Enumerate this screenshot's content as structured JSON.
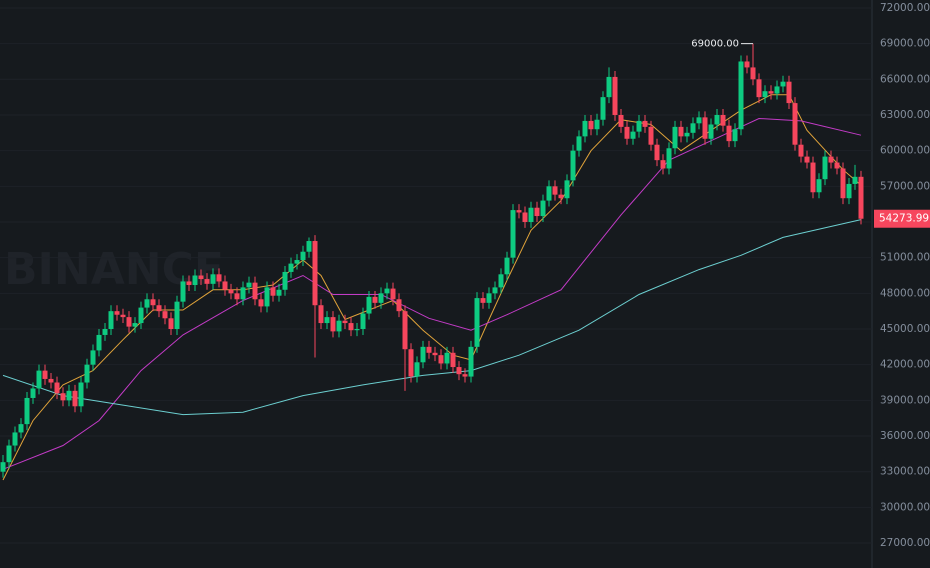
{
  "chart_data": {
    "type": "candlestick",
    "watermark": "BINANCE",
    "annotation": "69000.00",
    "up_color": "#0ecb81",
    "down_color": "#f6465d",
    "ohlc": [
      [
        33000,
        34400,
        32500,
        33800
      ],
      [
        33800,
        35700,
        33300,
        35200
      ],
      [
        35200,
        36800,
        34700,
        36300
      ],
      [
        36300,
        37500,
        35800,
        37000
      ],
      [
        37000,
        39700,
        36500,
        39200
      ],
      [
        39200,
        40500,
        38700,
        40000
      ],
      [
        40000,
        42000,
        39500,
        41500
      ],
      [
        41500,
        42000,
        40300,
        40800
      ],
      [
        40800,
        41300,
        40000,
        40500
      ],
      [
        40500,
        41000,
        39100,
        39600
      ],
      [
        39600,
        40100,
        38500,
        39000
      ],
      [
        39000,
        40300,
        38500,
        39800
      ],
      [
        39800,
        40300,
        38000,
        38500
      ],
      [
        38500,
        41000,
        38000,
        40500
      ],
      [
        40500,
        42500,
        40000,
        42000
      ],
      [
        42000,
        43700,
        41500,
        43200
      ],
      [
        43200,
        45000,
        42700,
        44500
      ],
      [
        44500,
        45500,
        44000,
        45000
      ],
      [
        45000,
        47000,
        44500,
        46500
      ],
      [
        46500,
        47000,
        45700,
        46200
      ],
      [
        46200,
        46700,
        45500,
        46000
      ],
      [
        46000,
        46500,
        44700,
        45200
      ],
      [
        45200,
        46000,
        44700,
        45500
      ],
      [
        45500,
        47300,
        45000,
        46800
      ],
      [
        46800,
        48000,
        46300,
        47500
      ],
      [
        47500,
        48000,
        46500,
        47000
      ],
      [
        47000,
        47500,
        46000,
        46500
      ],
      [
        46500,
        47000,
        45400,
        45900
      ],
      [
        45900,
        46400,
        44500,
        45000
      ],
      [
        45000,
        47800,
        44500,
        47300
      ],
      [
        47300,
        49500,
        46800,
        49000
      ],
      [
        49000,
        49500,
        48200,
        48700
      ],
      [
        48700,
        50000,
        48200,
        49500
      ],
      [
        49500,
        50000,
        48700,
        49200
      ],
      [
        49200,
        49700,
        48300,
        48800
      ],
      [
        48800,
        50100,
        48300,
        49600
      ],
      [
        49600,
        50100,
        48500,
        49000
      ],
      [
        49000,
        49500,
        47800,
        48300
      ],
      [
        48300,
        48800,
        47500,
        48000
      ],
      [
        48000,
        48500,
        47000,
        47500
      ],
      [
        47500,
        49000,
        47000,
        48500
      ],
      [
        48500,
        49400,
        48000,
        48900
      ],
      [
        48900,
        49400,
        47000,
        47500
      ],
      [
        47500,
        48000,
        46400,
        46900
      ],
      [
        46900,
        49000,
        46400,
        48500
      ],
      [
        48500,
        49000,
        47300,
        47800
      ],
      [
        47800,
        48800,
        47300,
        48300
      ],
      [
        48300,
        50300,
        47800,
        49800
      ],
      [
        49800,
        51000,
        49300,
        50500
      ],
      [
        50500,
        51300,
        50000,
        50800
      ],
      [
        50800,
        52000,
        50300,
        51500
      ],
      [
        51500,
        52700,
        51000,
        52400
      ],
      [
        52400,
        52900,
        42600,
        47000
      ],
      [
        47000,
        47500,
        45000,
        45500
      ],
      [
        45500,
        46500,
        45000,
        46000
      ],
      [
        46000,
        46500,
        44300,
        44800
      ],
      [
        44800,
        46200,
        44300,
        45700
      ],
      [
        45700,
        46200,
        45000,
        45500
      ],
      [
        45500,
        46000,
        44400,
        44900
      ],
      [
        44900,
        45500,
        44400,
        45000
      ],
      [
        45000,
        46800,
        44500,
        46300
      ],
      [
        46300,
        48200,
        45800,
        47700
      ],
      [
        47700,
        48200,
        46700,
        47200
      ],
      [
        47200,
        48500,
        46700,
        48000
      ],
      [
        48000,
        48900,
        47500,
        48400
      ],
      [
        48400,
        48900,
        47000,
        47500
      ],
      [
        47500,
        48000,
        46000,
        46500
      ],
      [
        46500,
        47000,
        39800,
        43300
      ],
      [
        43300,
        43800,
        40500,
        41000
      ],
      [
        41000,
        42700,
        40500,
        42200
      ],
      [
        42200,
        44000,
        41700,
        43500
      ],
      [
        43500,
        44000,
        42500,
        43000
      ],
      [
        43000,
        43500,
        42300,
        42800
      ],
      [
        42800,
        43300,
        41600,
        42100
      ],
      [
        42100,
        43500,
        41600,
        43000
      ],
      [
        43000,
        43500,
        41300,
        41800
      ],
      [
        41800,
        42300,
        40700,
        41200
      ],
      [
        41200,
        41700,
        40500,
        41000
      ],
      [
        41000,
        44000,
        40500,
        43500
      ],
      [
        43500,
        48100,
        43000,
        47600
      ],
      [
        47600,
        48100,
        46700,
        47200
      ],
      [
        47200,
        48500,
        46700,
        48000
      ],
      [
        48000,
        49000,
        47500,
        48500
      ],
      [
        48500,
        50100,
        48000,
        49600
      ],
      [
        49600,
        51500,
        49100,
        51000
      ],
      [
        51000,
        55500,
        50500,
        55000
      ],
      [
        55000,
        55500,
        54300,
        54800
      ],
      [
        54800,
        55300,
        53500,
        54000
      ],
      [
        54000,
        55700,
        53500,
        55200
      ],
      [
        55200,
        55700,
        54000,
        54500
      ],
      [
        54500,
        56300,
        54000,
        55800
      ],
      [
        55800,
        57500,
        55300,
        57000
      ],
      [
        57000,
        57500,
        55800,
        56300
      ],
      [
        56300,
        56800,
        55500,
        56000
      ],
      [
        56000,
        58000,
        55500,
        57500
      ],
      [
        57500,
        60500,
        57000,
        60000
      ],
      [
        60000,
        61700,
        59500,
        61200
      ],
      [
        61200,
        63000,
        60700,
        62500
      ],
      [
        62500,
        63000,
        61300,
        61800
      ],
      [
        61800,
        63100,
        61300,
        62600
      ],
      [
        62600,
        65000,
        62100,
        64500
      ],
      [
        64500,
        67000,
        64000,
        66200
      ],
      [
        66200,
        66700,
        62500,
        63000
      ],
      [
        63000,
        63500,
        61500,
        62000
      ],
      [
        62000,
        62500,
        60500,
        61000
      ],
      [
        61000,
        62100,
        60500,
        61600
      ],
      [
        61600,
        63000,
        61100,
        62500
      ],
      [
        62500,
        63000,
        61500,
        62000
      ],
      [
        62000,
        62500,
        60000,
        60500
      ],
      [
        60500,
        61000,
        58700,
        59200
      ],
      [
        59200,
        59700,
        58000,
        58500
      ],
      [
        58500,
        60700,
        58000,
        60200
      ],
      [
        60200,
        62500,
        59700,
        62000
      ],
      [
        62000,
        62500,
        60700,
        61200
      ],
      [
        61200,
        62000,
        60700,
        61500
      ],
      [
        61500,
        62800,
        61000,
        62300
      ],
      [
        62300,
        63300,
        61800,
        62800
      ],
      [
        62800,
        63300,
        60500,
        61000
      ],
      [
        61000,
        62700,
        60500,
        62200
      ],
      [
        62200,
        63500,
        61700,
        63000
      ],
      [
        63000,
        63500,
        61600,
        62100
      ],
      [
        62100,
        62600,
        60300,
        60800
      ],
      [
        60800,
        62300,
        60300,
        61800
      ],
      [
        61800,
        68000,
        61300,
        67500
      ],
      [
        67500,
        68000,
        66500,
        67000
      ],
      [
        67000,
        69000,
        65500,
        66000
      ],
      [
        66000,
        66500,
        64000,
        64500
      ],
      [
        64500,
        65500,
        64000,
        65000
      ],
      [
        65000,
        65500,
        64300,
        64800
      ],
      [
        64800,
        65900,
        64300,
        65400
      ],
      [
        65400,
        66300,
        64900,
        65800
      ],
      [
        65800,
        66300,
        63500,
        64000
      ],
      [
        64000,
        64500,
        60000,
        60500
      ],
      [
        60500,
        61000,
        59000,
        59500
      ],
      [
        59500,
        60000,
        58500,
        59000
      ],
      [
        59000,
        59500,
        56000,
        56500
      ],
      [
        56500,
        58100,
        56000,
        57600
      ],
      [
        57600,
        60000,
        57100,
        59500
      ],
      [
        59500,
        60000,
        58500,
        59000
      ],
      [
        59000,
        59500,
        58000,
        58500
      ],
      [
        58500,
        59000,
        55500,
        56000
      ],
      [
        56000,
        57700,
        55500,
        57200
      ],
      [
        57200,
        58800,
        56700,
        57800
      ],
      [
        57800,
        58300,
        53800,
        54273.99
      ]
    ],
    "lines": [
      {
        "color": "#e0a33a",
        "x": [
          0,
          5,
          10,
          15,
          20,
          25,
          30,
          35,
          40,
          45,
          50,
          53,
          57,
          61,
          65,
          70,
          75,
          78,
          81,
          84,
          88,
          93,
          98,
          103,
          108,
          113,
          118,
          123,
          128,
          131,
          134,
          140,
          143
        ],
        "values": [
          32300,
          37300,
          40300,
          41500,
          44100,
          46600,
          46600,
          48300,
          48300,
          48700,
          50800,
          49500,
          45800,
          46600,
          47400,
          44900,
          42800,
          42400,
          45800,
          49100,
          53300,
          55800,
          60000,
          62600,
          62200,
          60000,
          61700,
          63400,
          64700,
          64700,
          61700,
          58400,
          57100
        ]
      },
      {
        "color": "#c23bc6",
        "x": [
          0,
          10,
          16,
          23,
          30,
          40,
          50,
          55,
          63,
          71,
          78,
          84,
          93,
          103,
          111,
          120,
          126,
          133,
          143
        ],
        "values": [
          33200,
          35200,
          37300,
          41500,
          44500,
          47400,
          49500,
          47900,
          47900,
          45900,
          44900,
          46200,
          48300,
          54600,
          59200,
          61300,
          62700,
          62500,
          61300
        ]
      },
      {
        "color": "#6ccfd0",
        "x": [
          0,
          10,
          20,
          30,
          40,
          50,
          60,
          70,
          78,
          86,
          96,
          106,
          116,
          123,
          130,
          143
        ],
        "values": [
          41100,
          39400,
          38600,
          37800,
          38000,
          39400,
          40300,
          41100,
          41500,
          42800,
          44900,
          47900,
          50000,
          51200,
          52700,
          54200
        ]
      }
    ],
    "ylim": [
      24900,
      72670
    ],
    "yticks": [
      {
        "value": 27000,
        "label": "27000.00"
      },
      {
        "value": 30000,
        "label": "30000.00"
      },
      {
        "value": 33000,
        "label": "33000.00"
      },
      {
        "value": 36000,
        "label": "36000.00"
      },
      {
        "value": 39000,
        "label": "39000.00"
      },
      {
        "value": 42000,
        "label": "42000.00"
      },
      {
        "value": 45000,
        "label": "45000.00"
      },
      {
        "value": 48000,
        "label": "48000.00"
      },
      {
        "value": 51000,
        "label": "51000.00"
      },
      {
        "value": 54000,
        "label": "54000.00"
      },
      {
        "value": 57000,
        "label": "57000.00"
      },
      {
        "value": 60000,
        "label": "60000.00"
      },
      {
        "value": 63000,
        "label": "63000.00"
      },
      {
        "value": 66000,
        "label": "66000.00"
      },
      {
        "value": 69000,
        "label": "69000.00"
      },
      {
        "value": 72000,
        "label": "72000.00"
      }
    ],
    "grid": true
  }
}
